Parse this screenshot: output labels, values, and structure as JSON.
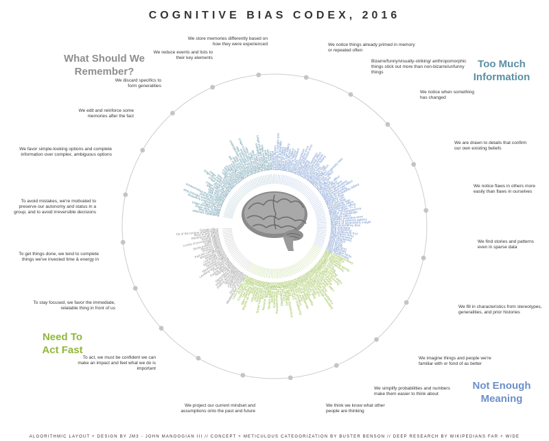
{
  "title": "COGNITIVE BIAS CODEX, 2016",
  "footer": "ALGORITHMIC LAYOUT + DESIGN BY JM3 - JOHN MANOOGIAN III // CONCEPT + METICULOUS CATEGORIZATION BY BUSTER BENSON // DEEP RESEARCH BY WIKIPEDIANS FAR + WIDE",
  "colors": {
    "memory": "#8e8e8e",
    "information": "#5a8fa3",
    "meaning": "#6b8fc9",
    "act_fast": "#8fb83a",
    "ring": "#cccccc",
    "dot": "#c4c4c4"
  },
  "quadrants": {
    "memory": "What Should We\nRemember?",
    "information": "Too Much\nInformation",
    "meaning": "Not Enough\nMeaning",
    "act_fast": "Need To\nAct Fast"
  },
  "categories": [
    {
      "text": "We notice things already primed in memory or repeated often",
      "group": "information"
    },
    {
      "text": "Bizarre/funny/visually-striking/ anthropomorphic things stick out more than non-bizarre/unfunny things",
      "group": "information"
    },
    {
      "text": "We notice when something has changed",
      "group": "information"
    },
    {
      "text": "We are drawn to details that confirm our own existing beliefs",
      "group": "information"
    },
    {
      "text": "We notice flaws in others more easily than flaws in ourselves",
      "group": "information"
    },
    {
      "text": "We find stories and patterns even in sparse data",
      "group": "meaning"
    },
    {
      "text": "We fill in characteristics from stereotypes, generalities, and prior histories",
      "group": "meaning"
    },
    {
      "text": "We imagine things and people we're familiar with or fond of as better",
      "group": "meaning"
    },
    {
      "text": "We simplify probabilities and numbers make them easier to think about",
      "group": "meaning"
    },
    {
      "text": "We think we know what other people are thinking",
      "group": "meaning"
    },
    {
      "text": "We project our current mindset and assumptions onto the past and future",
      "group": "meaning"
    },
    {
      "text": "To act, we must be confident we can make an impact and feel what we do is important",
      "group": "act_fast"
    },
    {
      "text": "To stay focused, we favor the immediate, relatable thing in front of us",
      "group": "act_fast"
    },
    {
      "text": "To get things done, we tend to complete things we've invested time & energy in",
      "group": "act_fast"
    },
    {
      "text": "To avoid mistakes, we're motivated to preserve our autonomy and status in a group, and to avoid irreversible decisions",
      "group": "act_fast"
    },
    {
      "text": "We favor simple-looking options and complete information over complex, ambiguous options",
      "group": "act_fast"
    },
    {
      "text": "We edit and reinforce some memories after the fact",
      "group": "memory"
    },
    {
      "text": "We discard specifics to form generalities",
      "group": "memory"
    },
    {
      "text": "We reduce events and lists to their key elements",
      "group": "memory"
    },
    {
      "text": "We store memories differently based on how they were experienced",
      "group": "memory"
    }
  ],
  "bias_labels": [
    {
      "text": "Availability heuristic",
      "group": "information"
    },
    {
      "text": "Attentional bias",
      "group": "information"
    },
    {
      "text": "Illusory truth effect",
      "group": "information"
    },
    {
      "text": "Mere exposure effect",
      "group": "information"
    },
    {
      "text": "Context effect",
      "group": "information"
    },
    {
      "text": "Cue-dependent forgetting",
      "group": "information"
    },
    {
      "text": "Mood-congruent memory bias",
      "group": "information"
    },
    {
      "text": "Frequency illusion",
      "group": "information"
    },
    {
      "text": "Baader-Meinhof Phenomenon",
      "group": "information"
    },
    {
      "text": "Empathy gap",
      "group": "information"
    },
    {
      "text": "Omission bias",
      "group": "information"
    },
    {
      "text": "Base rate fallacy",
      "group": "information"
    },
    {
      "text": "Bizarreness effect",
      "group": "information"
    },
    {
      "text": "Humor effect",
      "group": "information"
    },
    {
      "text": "Von Restorff effect",
      "group": "information"
    },
    {
      "text": "Picture superiority effect",
      "group": "information"
    },
    {
      "text": "Self-relevance effect",
      "group": "information"
    },
    {
      "text": "Negativity bias",
      "group": "information"
    },
    {
      "text": "Anchoring",
      "group": "information"
    },
    {
      "text": "Conservatism",
      "group": "information"
    },
    {
      "text": "Contrast effect",
      "group": "information"
    },
    {
      "text": "Distinction bias",
      "group": "information"
    },
    {
      "text": "Focusing effect",
      "group": "information"
    },
    {
      "text": "Framing effect",
      "group": "information"
    },
    {
      "text": "Money illusion",
      "group": "information"
    },
    {
      "text": "Weber-Fechner law",
      "group": "information"
    },
    {
      "text": "Confirmation bias",
      "group": "information"
    },
    {
      "text": "Congruence bias",
      "group": "information"
    },
    {
      "text": "Post-purchase rationalization",
      "group": "information"
    },
    {
      "text": "Choice-supportive bias",
      "group": "information"
    },
    {
      "text": "Selective perception",
      "group": "information"
    },
    {
      "text": "Observer-expectancy effect",
      "group": "information"
    },
    {
      "text": "Experimenter's bias",
      "group": "information"
    },
    {
      "text": "Observer effect",
      "group": "information"
    },
    {
      "text": "Expectation bias",
      "group": "information"
    },
    {
      "text": "Ostrich effect",
      "group": "information"
    },
    {
      "text": "Subjective validation",
      "group": "information"
    },
    {
      "text": "Continued influence effect",
      "group": "information"
    },
    {
      "text": "Semmelweis reflex",
      "group": "information"
    },
    {
      "text": "Bias blind spot",
      "group": "information"
    },
    {
      "text": "Naïve cynicism",
      "group": "information"
    },
    {
      "text": "Naïve realism",
      "group": "information"
    },
    {
      "text": "Confabulation",
      "group": "meaning"
    },
    {
      "text": "Clustering illusion",
      "group": "meaning"
    },
    {
      "text": "Insensitivity to sample size",
      "group": "meaning"
    },
    {
      "text": "Neglect of probability",
      "group": "meaning"
    },
    {
      "text": "Anecdotal fallacy",
      "group": "meaning"
    },
    {
      "text": "Illusion of validity",
      "group": "meaning"
    },
    {
      "text": "Masked man fallacy",
      "group": "meaning"
    },
    {
      "text": "Recency illusion",
      "group": "meaning"
    },
    {
      "text": "Gambler's fallacy",
      "group": "meaning"
    },
    {
      "text": "Hot-hand fallacy",
      "group": "meaning"
    },
    {
      "text": "Illusory correlation",
      "group": "meaning"
    },
    {
      "text": "Pareidolia",
      "group": "meaning"
    },
    {
      "text": "Anthropomorphism",
      "group": "meaning"
    },
    {
      "text": "Group attribution error",
      "group": "meaning"
    },
    {
      "text": "Ultimate attribution error",
      "group": "meaning"
    },
    {
      "text": "Stereotyping",
      "group": "meaning"
    },
    {
      "text": "Essentialism",
      "group": "meaning"
    },
    {
      "text": "Functional fixedness",
      "group": "meaning"
    },
    {
      "text": "Moral credential effect",
      "group": "meaning"
    },
    {
      "text": "Just-world hypothesis",
      "group": "meaning"
    },
    {
      "text": "Argument from fallacy",
      "group": "meaning"
    },
    {
      "text": "Authority bias",
      "group": "meaning"
    },
    {
      "text": "Automation bias",
      "group": "meaning"
    },
    {
      "text": "Bandwagon effect",
      "group": "meaning"
    },
    {
      "text": "Placebo effect",
      "group": "meaning"
    },
    {
      "text": "Out-group homogeneity bias",
      "group": "meaning"
    },
    {
      "text": "Cross-race effect",
      "group": "meaning"
    },
    {
      "text": "In-group bias",
      "group": "meaning"
    },
    {
      "text": "Halo effect",
      "group": "meaning"
    },
    {
      "text": "Cheerleader effect",
      "group": "meaning"
    },
    {
      "text": "Positivity effect",
      "group": "meaning"
    },
    {
      "text": "Not invented here",
      "group": "meaning"
    },
    {
      "text": "Reactive devaluation",
      "group": "meaning"
    },
    {
      "text": "Well-traveled road effect",
      "group": "meaning"
    },
    {
      "text": "Mental accounting",
      "group": "meaning"
    },
    {
      "text": "Appeal to probability fallacy",
      "group": "meaning"
    },
    {
      "text": "Normalcy bias",
      "group": "meaning"
    },
    {
      "text": "Murphy's Law",
      "group": "meaning"
    },
    {
      "text": "Zero sum bias",
      "group": "meaning"
    },
    {
      "text": "Survivorship bias",
      "group": "meaning"
    },
    {
      "text": "Subadditivity effect",
      "group": "meaning"
    },
    {
      "text": "Denomination effect",
      "group": "meaning"
    },
    {
      "text": "Magic number 7+-2",
      "group": "meaning"
    },
    {
      "text": "Illusion of transparency",
      "group": "meaning"
    },
    {
      "text": "Curse of knowledge",
      "group": "meaning"
    },
    {
      "text": "Spotlight effect",
      "group": "meaning"
    },
    {
      "text": "Extrinsic incentive error",
      "group": "meaning"
    },
    {
      "text": "Illusion of external agency",
      "group": "meaning"
    },
    {
      "text": "Illusion of asymmetric insight",
      "group": "meaning"
    },
    {
      "text": "Self-consistency bias",
      "group": "meaning"
    },
    {
      "text": "Restraint bias",
      "group": "meaning"
    },
    {
      "text": "Projection bias",
      "group": "meaning"
    },
    {
      "text": "Pro-innovation bias",
      "group": "meaning"
    },
    {
      "text": "Time-saving bias",
      "group": "meaning"
    },
    {
      "text": "Planning fallacy",
      "group": "meaning"
    },
    {
      "text": "Pessimism bias",
      "group": "meaning"
    },
    {
      "text": "Impact bias",
      "group": "meaning"
    },
    {
      "text": "Declinism",
      "group": "meaning"
    },
    {
      "text": "Moral luck",
      "group": "meaning"
    },
    {
      "text": "Outcome bias",
      "group": "meaning"
    },
    {
      "text": "Hindsight bias",
      "group": "meaning"
    },
    {
      "text": "Rosy retrospection",
      "group": "meaning"
    },
    {
      "text": "Telescoping effect",
      "group": "meaning"
    },
    {
      "text": "Overconfidence effect",
      "group": "act_fast"
    },
    {
      "text": "Egocentric bias",
      "group": "act_fast"
    },
    {
      "text": "Optimism bias",
      "group": "act_fast"
    },
    {
      "text": "Social desirability bias",
      "group": "act_fast"
    },
    {
      "text": "Third-person effect",
      "group": "act_fast"
    },
    {
      "text": "Forer effect",
      "group": "act_fast"
    },
    {
      "text": "Barnum effect",
      "group": "act_fast"
    },
    {
      "text": "Illusion of control",
      "group": "act_fast"
    },
    {
      "text": "False consensus effect",
      "group": "act_fast"
    },
    {
      "text": "Dunning-Kruger effect",
      "group": "act_fast"
    },
    {
      "text": "Hard-easy effect",
      "group": "act_fast"
    },
    {
      "text": "Illusory superiority",
      "group": "act_fast"
    },
    {
      "text": "Lake Wobegone effect",
      "group": "act_fast"
    },
    {
      "text": "Self-serving bias",
      "group": "act_fast"
    },
    {
      "text": "Actor-observer bias",
      "group": "act_fast"
    },
    {
      "text": "Fundamental attribution error",
      "group": "act_fast"
    },
    {
      "text": "Defensive attribution hypothesis",
      "group": "act_fast"
    },
    {
      "text": "Trait ascription bias",
      "group": "act_fast"
    },
    {
      "text": "Effort justification",
      "group": "act_fast"
    },
    {
      "text": "Risk compensation",
      "group": "act_fast"
    },
    {
      "text": "Peltzman effect",
      "group": "act_fast"
    },
    {
      "text": "Hyperbolic discounting",
      "group": "act_fast"
    },
    {
      "text": "Appeal to novelty",
      "group": "act_fast"
    },
    {
      "text": "Identifiable victim effect",
      "group": "act_fast"
    },
    {
      "text": "Sunk cost fallacy",
      "group": "act_fast"
    },
    {
      "text": "Irrational escalation",
      "group": "act_fast"
    },
    {
      "text": "Escalation of commitment",
      "group": "act_fast"
    },
    {
      "text": "Loss aversion",
      "group": "act_fast"
    },
    {
      "text": "IKEA effect",
      "group": "act_fast"
    },
    {
      "text": "Processing difficulty effect",
      "group": "act_fast"
    },
    {
      "text": "Generation effect",
      "group": "act_fast"
    },
    {
      "text": "Zero-risk bias",
      "group": "act_fast"
    },
    {
      "text": "Disposition effect",
      "group": "act_fast"
    },
    {
      "text": "Unit bias",
      "group": "act_fast"
    },
    {
      "text": "Pseudocertainty effect",
      "group": "act_fast"
    },
    {
      "text": "Endowment effect",
      "group": "act_fast"
    },
    {
      "text": "Backfire effect",
      "group": "act_fast"
    },
    {
      "text": "System justification",
      "group": "act_fast"
    },
    {
      "text": "Reactance",
      "group": "act_fast"
    },
    {
      "text": "Reverse psychology",
      "group": "act_fast"
    },
    {
      "text": "Decoy effect",
      "group": "act_fast"
    },
    {
      "text": "Social comparison bias",
      "group": "act_fast"
    },
    {
      "text": "Status quo bias",
      "group": "act_fast"
    },
    {
      "text": "Ambiguity bias",
      "group": "act_fast"
    },
    {
      "text": "Information bias",
      "group": "act_fast"
    },
    {
      "text": "Belief bias",
      "group": "act_fast"
    },
    {
      "text": "Rhyme as reason effect",
      "group": "act_fast"
    },
    {
      "text": "Bike-shedding effect",
      "group": "act_fast"
    },
    {
      "text": "Law of Triviality",
      "group": "act_fast"
    },
    {
      "text": "Conjunction fallacy",
      "group": "act_fast"
    },
    {
      "text": "Occam's razor",
      "group": "act_fast"
    },
    {
      "text": "Less-is-better effect",
      "group": "act_fast"
    },
    {
      "text": "Misattribution of memory",
      "group": "memory"
    },
    {
      "text": "Source confusion",
      "group": "memory"
    },
    {
      "text": "Cryptomnesia",
      "group": "memory"
    },
    {
      "text": "False memory",
      "group": "memory"
    },
    {
      "text": "Suggestibility",
      "group": "memory"
    },
    {
      "text": "Spacing effect",
      "group": "memory"
    },
    {
      "text": "Implicit associations",
      "group": "memory"
    },
    {
      "text": "Implicit stereotypes",
      "group": "memory"
    },
    {
      "text": "Stereotypical bias",
      "group": "memory"
    },
    {
      "text": "Prejudice",
      "group": "memory"
    },
    {
      "text": "Negativity bias",
      "group": "memory"
    },
    {
      "text": "Fading affect bias",
      "group": "memory"
    },
    {
      "text": "Peak-end rule",
      "group": "memory"
    },
    {
      "text": "Leveling and sharpening",
      "group": "memory"
    },
    {
      "text": "Misinformation effect",
      "group": "memory"
    },
    {
      "text": "Duration neglect",
      "group": "memory"
    },
    {
      "text": "Serial recall effect",
      "group": "memory"
    },
    {
      "text": "List-length effect",
      "group": "memory"
    },
    {
      "text": "Modality effect",
      "group": "memory"
    },
    {
      "text": "Memory inhibition",
      "group": "memory"
    },
    {
      "text": "Part-list cueing effect",
      "group": "memory"
    },
    {
      "text": "Primacy effect",
      "group": "memory"
    },
    {
      "text": "Recency effect",
      "group": "memory"
    },
    {
      "text": "Serial position effect",
      "group": "memory"
    },
    {
      "text": "Suffix effect",
      "group": "memory"
    },
    {
      "text": "Levels of processing effect",
      "group": "memory"
    },
    {
      "text": "Testing effect",
      "group": "memory"
    },
    {
      "text": "Absent-mindedness",
      "group": "memory"
    },
    {
      "text": "Next-in-line effect",
      "group": "memory"
    },
    {
      "text": "Tip of the tongue phenomenon",
      "group": "memory"
    },
    {
      "text": "Google effect",
      "group": "memory"
    }
  ]
}
